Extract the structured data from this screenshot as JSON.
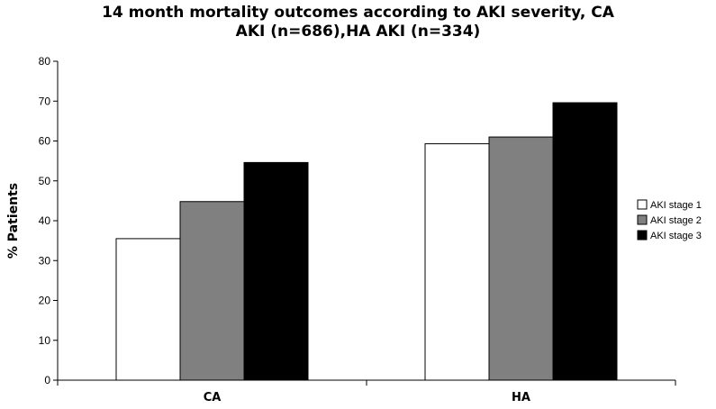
{
  "chart_data": {
    "type": "bar",
    "title_line1": "14 month mortality outcomes according to AKI severity, CA",
    "title_line2": "AKI (n=686),HA AKI (n=334)",
    "xlabel": "",
    "ylabel": "% Patients",
    "categories": [
      "CA",
      "HA"
    ],
    "ylim": [
      0,
      80
    ],
    "yticks": [
      "0",
      "10",
      "20",
      "30",
      "40",
      "50",
      "60",
      "70",
      "80"
    ],
    "grid": false,
    "legend_position": "right",
    "series": [
      {
        "name": "AKI stage 1",
        "color": "#ffffff",
        "values": [
          35.5,
          59.3
        ]
      },
      {
        "name": "AKI stage 2",
        "color": "#808080",
        "values": [
          44.8,
          61.0
        ]
      },
      {
        "name": "AKI stage 3",
        "color": "#000000",
        "values": [
          54.6,
          69.6
        ]
      }
    ]
  }
}
